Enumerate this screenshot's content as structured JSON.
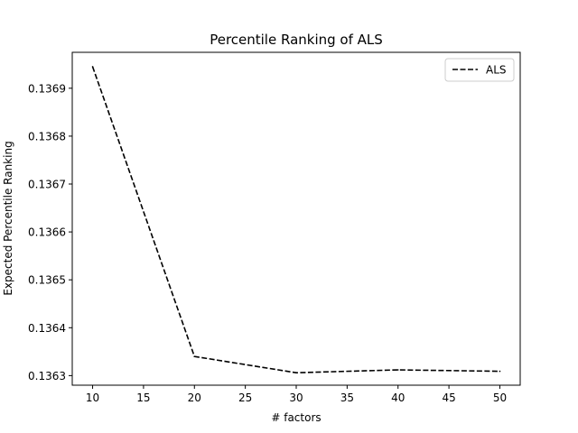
{
  "chart_data": {
    "type": "line",
    "title": "Percentile Ranking of ALS",
    "xlabel": "# factors",
    "ylabel": "Expected Percentile Ranking",
    "xlim": [
      8,
      52
    ],
    "ylim": [
      0.13628,
      0.136975
    ],
    "xticks": [
      10,
      15,
      20,
      25,
      30,
      35,
      40,
      45,
      50
    ],
    "yticks": [
      0.1363,
      0.1364,
      0.1365,
      0.1366,
      0.1367,
      0.1368,
      0.1369
    ],
    "grid": false,
    "legend": {
      "placement": "top-right",
      "entries": [
        "ALS"
      ]
    },
    "series": [
      {
        "name": "ALS",
        "style": "dashed",
        "color": "#000000",
        "x": [
          10,
          20,
          30,
          40,
          50
        ],
        "y": [
          0.136945,
          0.13634,
          0.136306,
          0.136312,
          0.136309
        ]
      }
    ]
  }
}
